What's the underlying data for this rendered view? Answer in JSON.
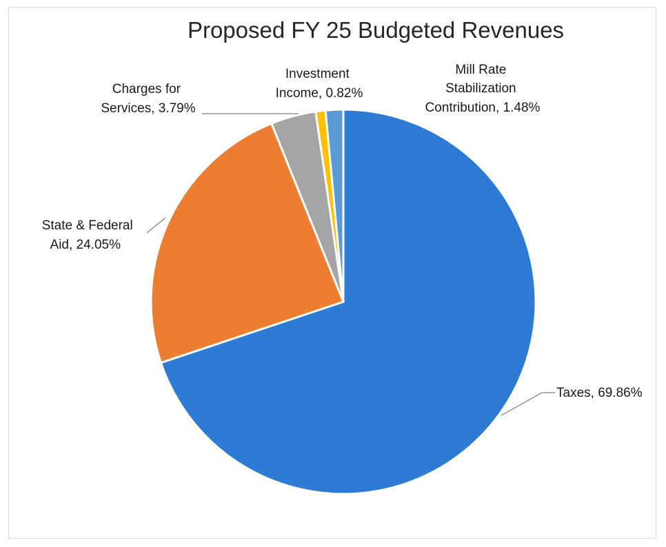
{
  "chart_data": {
    "type": "pie",
    "title": "Proposed FY 25 Budgeted Revenues",
    "series": [
      {
        "values": [
          69.86,
          24.05,
          3.79,
          0.82,
          1.48
        ]
      }
    ],
    "slices": [
      {
        "name": "Taxes",
        "value": 69.86,
        "label": "Taxes, 69.86%",
        "color": "#2E7BD6"
      },
      {
        "name": "State & Federal Aid",
        "value": 24.05,
        "label": "State & Federal Aid, 24.05%",
        "color": "#ED7D31"
      },
      {
        "name": "Charges for Services",
        "value": 3.79,
        "label": "Charges for Services, 3.79%",
        "color": "#A5A5A5"
      },
      {
        "name": "Investment Income",
        "value": 0.82,
        "label": "Investment Income, 0.82%",
        "color": "#FFC000"
      },
      {
        "name": "Mill Rate Stabilization Contribution",
        "value": 1.48,
        "label": "Mill Rate Stabilization Contribution, 1.48%",
        "color": "#5B9BD5"
      }
    ],
    "legend": "none",
    "data_labels": "outside-with-leader-lines"
  },
  "labels": {
    "taxes": [
      "Taxes, 69.86%"
    ],
    "state_federal": [
      "State & Federal",
      "Aid, 24.05%"
    ],
    "charges": [
      "Charges for",
      "Services, 3.79%"
    ],
    "investment": [
      "Investment",
      "Income, 0.82%"
    ],
    "mill_rate": [
      "Mill Rate",
      "Stabilization",
      "Contribution, 1.48%"
    ]
  }
}
